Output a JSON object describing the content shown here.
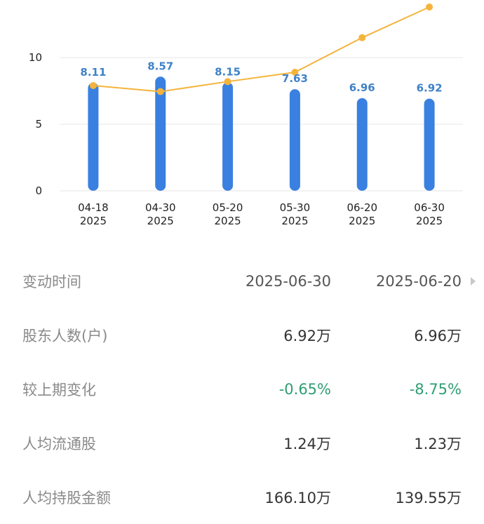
{
  "chart_data": {
    "type": "bar",
    "categories": [
      "04-18",
      "04-30",
      "05-20",
      "05-30",
      "06-20",
      "06-30"
    ],
    "years": [
      "2025",
      "2025",
      "2025",
      "2025",
      "2025",
      "2025"
    ],
    "series": [
      {
        "type": "bar",
        "values": [
          8.11,
          8.57,
          8.15,
          7.63,
          6.96,
          6.92
        ],
        "labels": [
          "8.11",
          "8.57",
          "8.15",
          "7.63",
          "6.96",
          "6.92"
        ],
        "color": "#3a80e0"
      },
      {
        "type": "line",
        "values": [
          7.9,
          7.45,
          8.2,
          8.9,
          11.5,
          13.8
        ],
        "color": "#f4b43c"
      }
    ],
    "yticks": [
      "0",
      "5",
      "10"
    ],
    "ylim": [
      0,
      13.8
    ],
    "grid": true
  },
  "table": {
    "header": {
      "label": "变动时间",
      "v1": "2025-06-30",
      "v2": "2025-06-20"
    },
    "rows": [
      {
        "label": "股东人数(户)",
        "v1": "6.92万",
        "v2": "6.96万"
      },
      {
        "label": "较上期变化",
        "v1": "-0.65%",
        "v2": "-8.75%"
      },
      {
        "label": "人均流通股",
        "v1": "1.24万",
        "v2": "1.23万"
      },
      {
        "label": "人均持股金额",
        "v1": "166.10万",
        "v2": "139.55万"
      }
    ]
  },
  "colors": {
    "bar": "#3a80e0",
    "line": "#f4b43c",
    "negative": "#2e9e73"
  }
}
